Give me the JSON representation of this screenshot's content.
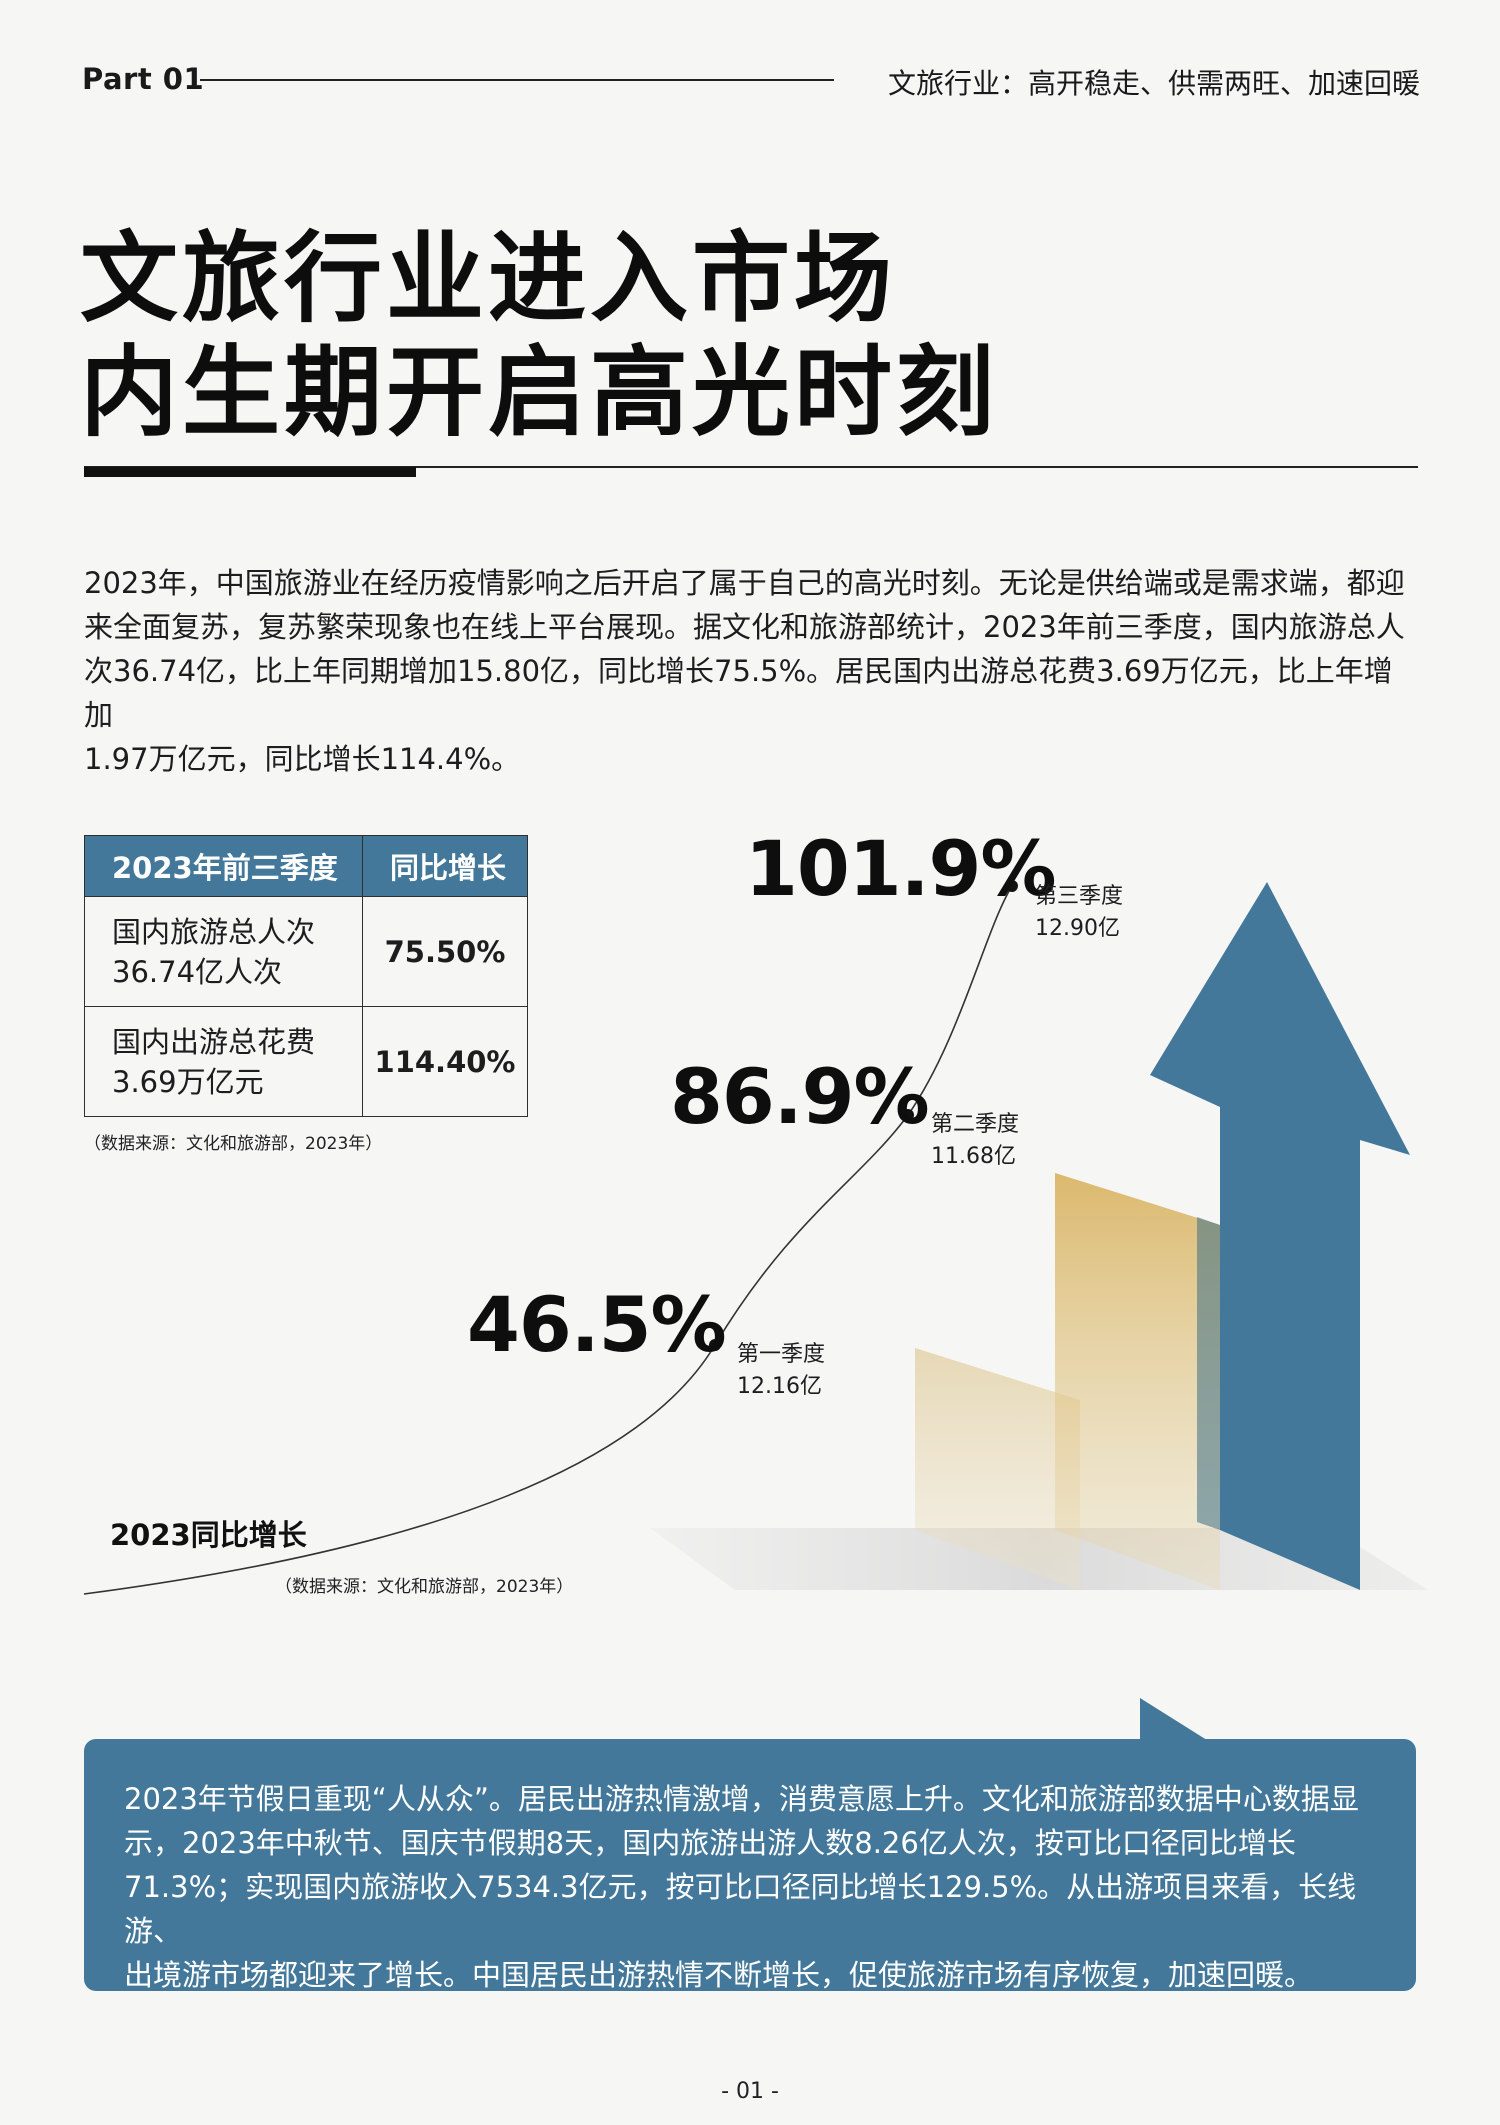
{
  "header": {
    "part": "Part 01",
    "subtitle": "文旅行业：高开稳走、供需两旺、加速回暖"
  },
  "title": {
    "line1": "文旅行业进入市场",
    "line2": "内生期开启高光时刻"
  },
  "intro": {
    "line1": "2023年，中国旅游业在经历疫情影响之后开启了属于自己的高光时刻。无论是供给端或是需求端，都迎",
    "line2": "来全面复苏，复苏繁荣现象也在线上平台展现。据文化和旅游部统计，2023年前三季度，国内旅游总人",
    "line3": "次36.74亿，比上年同期增加15.80亿，同比增长75.5%。居民国内出游总花费3.69万亿元，比上年增加",
    "line4": "1.97万亿元，同比增长114.4%。"
  },
  "table": {
    "headers": [
      "2023年前三季度",
      "同比增长"
    ],
    "rows": [
      {
        "name_line1": "国内旅游总人次",
        "name_line2": "36.74亿人次",
        "value": "75.50%"
      },
      {
        "name_line1": "国内出游总花费",
        "name_line2": "3.69万亿元",
        "value": "114.40%"
      }
    ],
    "source": "（数据来源：文化和旅游部，2023年）"
  },
  "chart_data": {
    "type": "line",
    "title": "2023同比增长",
    "categories": [
      "第一季度",
      "第二季度",
      "第三季度"
    ],
    "series": [
      {
        "name": "",
        "values": [
          46.5,
          86.9,
          101.9
        ]
      }
    ],
    "labels": [
      "46.5%",
      "86.9%",
      "101.9%"
    ],
    "sublabels": [
      "12.16亿",
      "11.68亿",
      "12.90亿"
    ],
    "source": "（数据来源：文化和旅游部，2023年）"
  },
  "callout": {
    "line1": "2023年节假日重现“人从众”。居民出游热情激增，消费意愿上升。文化和旅游部数据中心数据显",
    "line2": "示，2023年中秋节、国庆节假期8天，国内旅游出游人数8.26亿人次，按可比口径同比增长",
    "line3": "71.3%；实现国内旅游收入7534.3亿元，按可比口径同比增长129.5%。从出游项目来看，长线游、",
    "line4": "出境游市场都迎来了增长。中国居民出游热情不断增长，促使旅游市场有序恢复，加速回暖。"
  },
  "footer": {
    "page": "- 01 -"
  },
  "colors": {
    "accent_blue": "#43789a",
    "gold": "#d8b25e"
  }
}
